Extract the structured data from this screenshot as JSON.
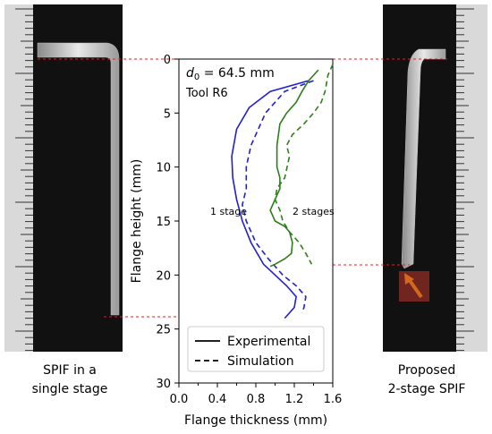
{
  "captions": {
    "left": "SPIF in a\nsingle stage",
    "right": "Proposed\n2-stage SPIF"
  },
  "colors": {
    "single_stage": "#1f1fd4",
    "two_stage": "#2e7d1a",
    "guide": "#e02020",
    "arrow": "#d2691e",
    "photo_bg": "#111111",
    "ruler": "#d9d9d9"
  },
  "chart_data": {
    "type": "line",
    "title": "",
    "xlabel": "Flange thickness (mm)",
    "ylabel": "Flange height (mm)",
    "xlim": [
      0.0,
      1.6
    ],
    "ylim": [
      30,
      0
    ],
    "xticks": [
      "0.0",
      "0.4",
      "0.8",
      "1.2",
      "1.6"
    ],
    "xticks_minor": [
      "0.2",
      "0.6",
      "1.0",
      "1.4"
    ],
    "yticks": [
      "0",
      "5",
      "10",
      "15",
      "20",
      "25",
      "30"
    ],
    "grid": false,
    "annotation": {
      "line1_symbol": "d",
      "line1_sub": "0",
      "line1_rest": " = 64.5 mm",
      "line2": "Tool R6"
    },
    "curve_labels": {
      "single": "1 stage",
      "two": "2 stages"
    },
    "legend": {
      "position": "lower-center",
      "entries": [
        {
          "label": "Experimental",
          "style": "solid"
        },
        {
          "label": "Simulation",
          "style": "dashed"
        }
      ]
    },
    "series": [
      {
        "name": "1 stage",
        "style": "solid",
        "color": "#1f1fd4",
        "x": [
          1.35,
          0.95,
          0.73,
          0.6,
          0.55,
          0.56,
          0.6,
          0.66,
          0.75,
          0.88,
          1.0,
          1.12,
          1.22,
          1.2,
          1.1
        ],
        "y": [
          2,
          3,
          4.5,
          6.5,
          9,
          11,
          13,
          15,
          17,
          19,
          20,
          21,
          22,
          23,
          24
        ]
      },
      {
        "name": "1 stage",
        "style": "dashed",
        "color": "#1f1fd4",
        "x": [
          1.4,
          1.1,
          0.9,
          0.75,
          0.7,
          0.7,
          0.66,
          0.7,
          0.8,
          0.93,
          1.08,
          1.22,
          1.32,
          1.3,
          1.28
        ],
        "y": [
          2,
          3,
          5,
          8,
          10,
          12,
          13.5,
          15,
          17,
          18.5,
          20,
          21,
          22,
          23,
          23.5
        ]
      },
      {
        "name": "2 stages",
        "style": "solid",
        "color": "#2e7d1a",
        "x": [
          1.45,
          1.35,
          1.28,
          1.22,
          1.12,
          1.05,
          1.02,
          1.02,
          1.05,
          1.05,
          1.0,
          0.95,
          1.0,
          1.1,
          1.15,
          1.18,
          1.17,
          1.1,
          1.0,
          0.95
        ],
        "y": [
          1,
          2,
          3,
          4,
          5,
          6,
          8,
          10,
          11,
          12,
          13,
          14,
          15,
          15.5,
          16,
          17,
          18,
          18.5,
          19,
          19.2
        ]
      },
      {
        "name": "2 stages",
        "style": "dashed",
        "color": "#2e7d1a",
        "x": [
          1.6,
          1.55,
          1.52,
          1.48,
          1.4,
          1.3,
          1.18,
          1.12,
          1.15,
          1.1,
          1.02,
          1.0,
          1.05,
          1.08,
          1.15,
          1.25,
          1.32,
          1.38
        ],
        "y": [
          0.5,
          1.5,
          3,
          4,
          5,
          6,
          7,
          8,
          9,
          11,
          12,
          13,
          14,
          15,
          16,
          17,
          18,
          19
        ]
      }
    ]
  }
}
